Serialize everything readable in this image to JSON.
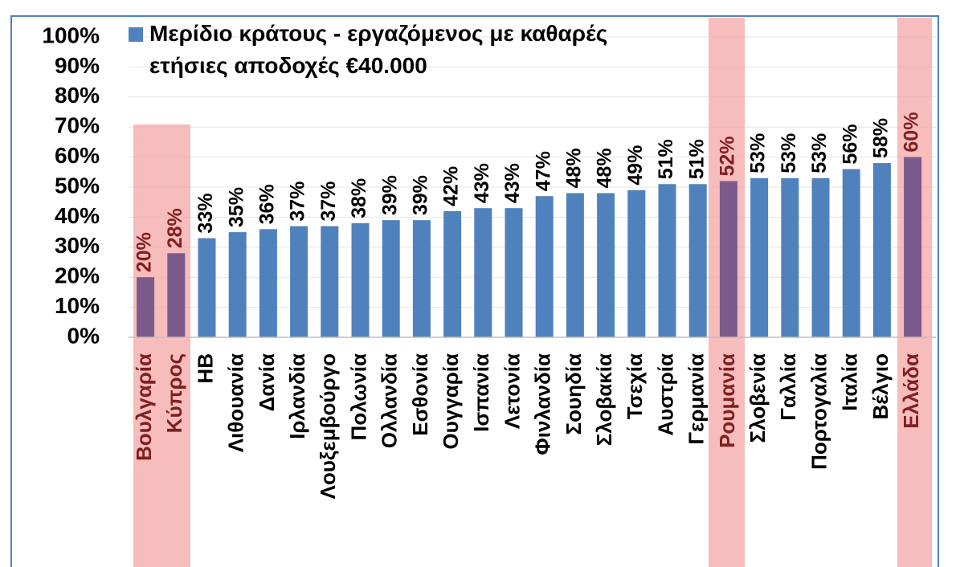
{
  "chart_data": {
    "type": "bar",
    "categories": [
      "Βουλγαρία",
      "Κύπρος",
      "ΗΒ",
      "Λιθουανία",
      "Δανία",
      "Ιρλανδία",
      "Λουξεμβούργο",
      "Πολωνία",
      "Ολλανδία",
      "Εσθονία",
      "Ουγγαρία",
      "Ισπανία",
      "Λετονία",
      "Φινλανδία",
      "Σουηδία",
      "Σλοβακία",
      "Τσεχία",
      "Αυστρία",
      "Γερμανία",
      "Ρουμανία",
      "Σλοβενία",
      "Γαλλία",
      "Πορτογαλία",
      "Ιταλία",
      "Βέλγιο",
      "Ελλάδα"
    ],
    "series": [
      {
        "name": "Μερίδιο κράτους - εργαζόμενος με καθαρές ετήσιες αποδοχές €40.000",
        "color": "#4f81bd",
        "values": [
          20,
          28,
          33,
          35,
          36,
          37,
          37,
          38,
          39,
          39,
          42,
          43,
          43,
          47,
          48,
          48,
          49,
          51,
          51,
          52,
          53,
          53,
          53,
          56,
          58,
          60
        ],
        "value_labels": [
          "20%",
          "28%",
          "33%",
          "35%",
          "36%",
          "37%",
          "37%",
          "38%",
          "39%",
          "39%",
          "42%",
          "43%",
          "43%",
          "47%",
          "48%",
          "48%",
          "49%",
          "51%",
          "51%",
          "52%",
          "53%",
          "53%",
          "53%",
          "56%",
          "58%",
          "60%"
        ],
        "bar_colors": [
          "#7b5b8c",
          "#7b5b8c",
          "#4f81bd",
          "#4f81bd",
          "#4f81bd",
          "#4f81bd",
          "#4f81bd",
          "#4f81bd",
          "#4f81bd",
          "#4f81bd",
          "#4f81bd",
          "#4f81bd",
          "#4f81bd",
          "#4f81bd",
          "#4f81bd",
          "#4f81bd",
          "#4f81bd",
          "#4f81bd",
          "#4f81bd",
          "#7b5b8c",
          "#4f81bd",
          "#4f81bd",
          "#4f81bd",
          "#4f81bd",
          "#4f81bd",
          "#7b5b8c"
        ]
      }
    ],
    "ylim": [
      0,
      100
    ],
    "yticks": [
      {
        "value": 0,
        "label": "0%"
      },
      {
        "value": 10,
        "label": "10%"
      },
      {
        "value": 20,
        "label": "20%"
      },
      {
        "value": 30,
        "label": "30%"
      },
      {
        "value": 40,
        "label": "40%"
      },
      {
        "value": 50,
        "label": "50%"
      },
      {
        "value": 60,
        "label": "60%"
      },
      {
        "value": 70,
        "label": "70%"
      },
      {
        "value": 80,
        "label": "80%"
      },
      {
        "value": 90,
        "label": "90%"
      },
      {
        "value": 100,
        "label": "100%"
      }
    ],
    "grid": true
  }
}
